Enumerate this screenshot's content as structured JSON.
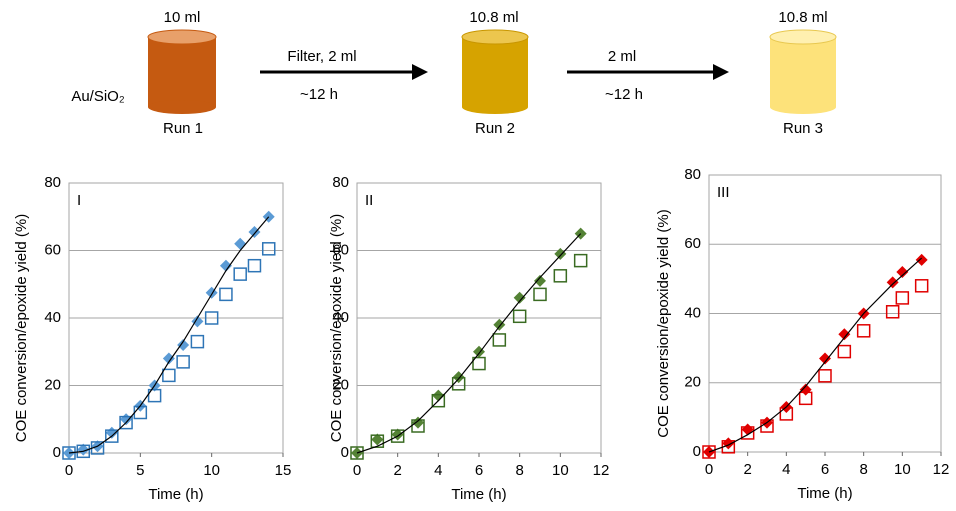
{
  "diagram": {
    "run1_volume": "10 ml",
    "catalyst": "Au/SiO₂",
    "run1_label": "Run 1",
    "step1_top": "Filter, 2 ml",
    "step1_bottom": "~12 h",
    "run2_volume": "10.8 ml",
    "run2_label": "Run 2",
    "step2_top": "2 ml",
    "step2_bottom": "~12 h",
    "run3_volume": "10.8 ml",
    "run3_label": "Run 3"
  },
  "chart_data": [
    {
      "type": "scatter",
      "panel_label": "I",
      "x_label": "Time (h)",
      "y_label": "COE conversion/epoxide yield (%)",
      "x": [
        0,
        1,
        2,
        3,
        4,
        5,
        6,
        7,
        8,
        9,
        10,
        11,
        12,
        13,
        14
      ],
      "series": [
        {
          "marker": "diamond",
          "color": "#5b9bd5",
          "values": [
            0,
            1,
            2,
            6,
            10,
            14,
            20,
            28,
            32,
            39,
            47.5,
            55.5,
            62,
            65.5,
            70
          ]
        },
        {
          "marker": "square",
          "color": "#2e75b6",
          "values": [
            0,
            0.5,
            1.5,
            5,
            9,
            12,
            17,
            23,
            27,
            33,
            40,
            47,
            53,
            55.5,
            60.5
          ]
        },
        {
          "marker": "line",
          "color": "#000000",
          "values": [
            0,
            0.5,
            2,
            5,
            9,
            14,
            20,
            27,
            33,
            40,
            47,
            54,
            60,
            65,
            70
          ]
        }
      ],
      "xlim": [
        0,
        15
      ],
      "xticks": [
        0,
        5,
        10,
        15
      ],
      "ylim": [
        0,
        80
      ],
      "yticks": [
        0,
        20,
        40,
        60,
        80
      ],
      "grid": true
    },
    {
      "type": "scatter",
      "panel_label": "II",
      "x_label": "Time (h)",
      "y_label": "COE conversion/epoxide yield (%)",
      "x": [
        0,
        1,
        2,
        3,
        4,
        5,
        6,
        7,
        8,
        9,
        10,
        11
      ],
      "series": [
        {
          "marker": "diamond",
          "color": "#548235",
          "values": [
            0,
            4,
            5.5,
            9,
            17,
            22.5,
            30,
            38,
            46,
            51,
            59,
            65
          ]
        },
        {
          "marker": "square",
          "color": "#3a6b22",
          "values": [
            0,
            3.5,
            5,
            8,
            15.5,
            20.5,
            26.5,
            33.5,
            40.5,
            47,
            52.5,
            57
          ]
        },
        {
          "marker": "line",
          "color": "#000000",
          "values": [
            0,
            2,
            5,
            9.5,
            15.5,
            22,
            29.5,
            37.5,
            45,
            52,
            58.5,
            65
          ]
        }
      ],
      "xlim": [
        0,
        12
      ],
      "xticks": [
        0,
        2,
        4,
        6,
        8,
        10,
        12
      ],
      "ylim": [
        0,
        80
      ],
      "yticks": [
        0,
        20,
        40,
        60,
        80
      ],
      "grid": true
    },
    {
      "type": "scatter",
      "panel_label": "III",
      "x_label": "Time (h)",
      "y_label": "COE conversion/epoxide yield (%)",
      "x": [
        0,
        1,
        2,
        3,
        4,
        5,
        6,
        7,
        8,
        9.5,
        10,
        11
      ],
      "series": [
        {
          "marker": "diamond",
          "color": "#e00000",
          "values": [
            0,
            2.5,
            6.5,
            8.5,
            13,
            18,
            27,
            34,
            40,
            49,
            52,
            55.5
          ]
        },
        {
          "marker": "square",
          "color": "#e00000",
          "values": [
            0,
            1.5,
            5.5,
            7.5,
            11,
            15.5,
            22,
            29,
            35,
            40.5,
            44.5,
            48
          ]
        },
        {
          "marker": "line",
          "color": "#000000",
          "values": [
            0,
            2,
            5,
            8.5,
            13,
            19,
            26,
            33,
            40,
            48.5,
            51,
            56
          ]
        }
      ],
      "xlim": [
        0,
        12
      ],
      "xticks": [
        0,
        2,
        4,
        6,
        8,
        10,
        12
      ],
      "ylim": [
        0,
        80
      ],
      "yticks": [
        0,
        20,
        40,
        60,
        80
      ],
      "grid": true
    }
  ]
}
